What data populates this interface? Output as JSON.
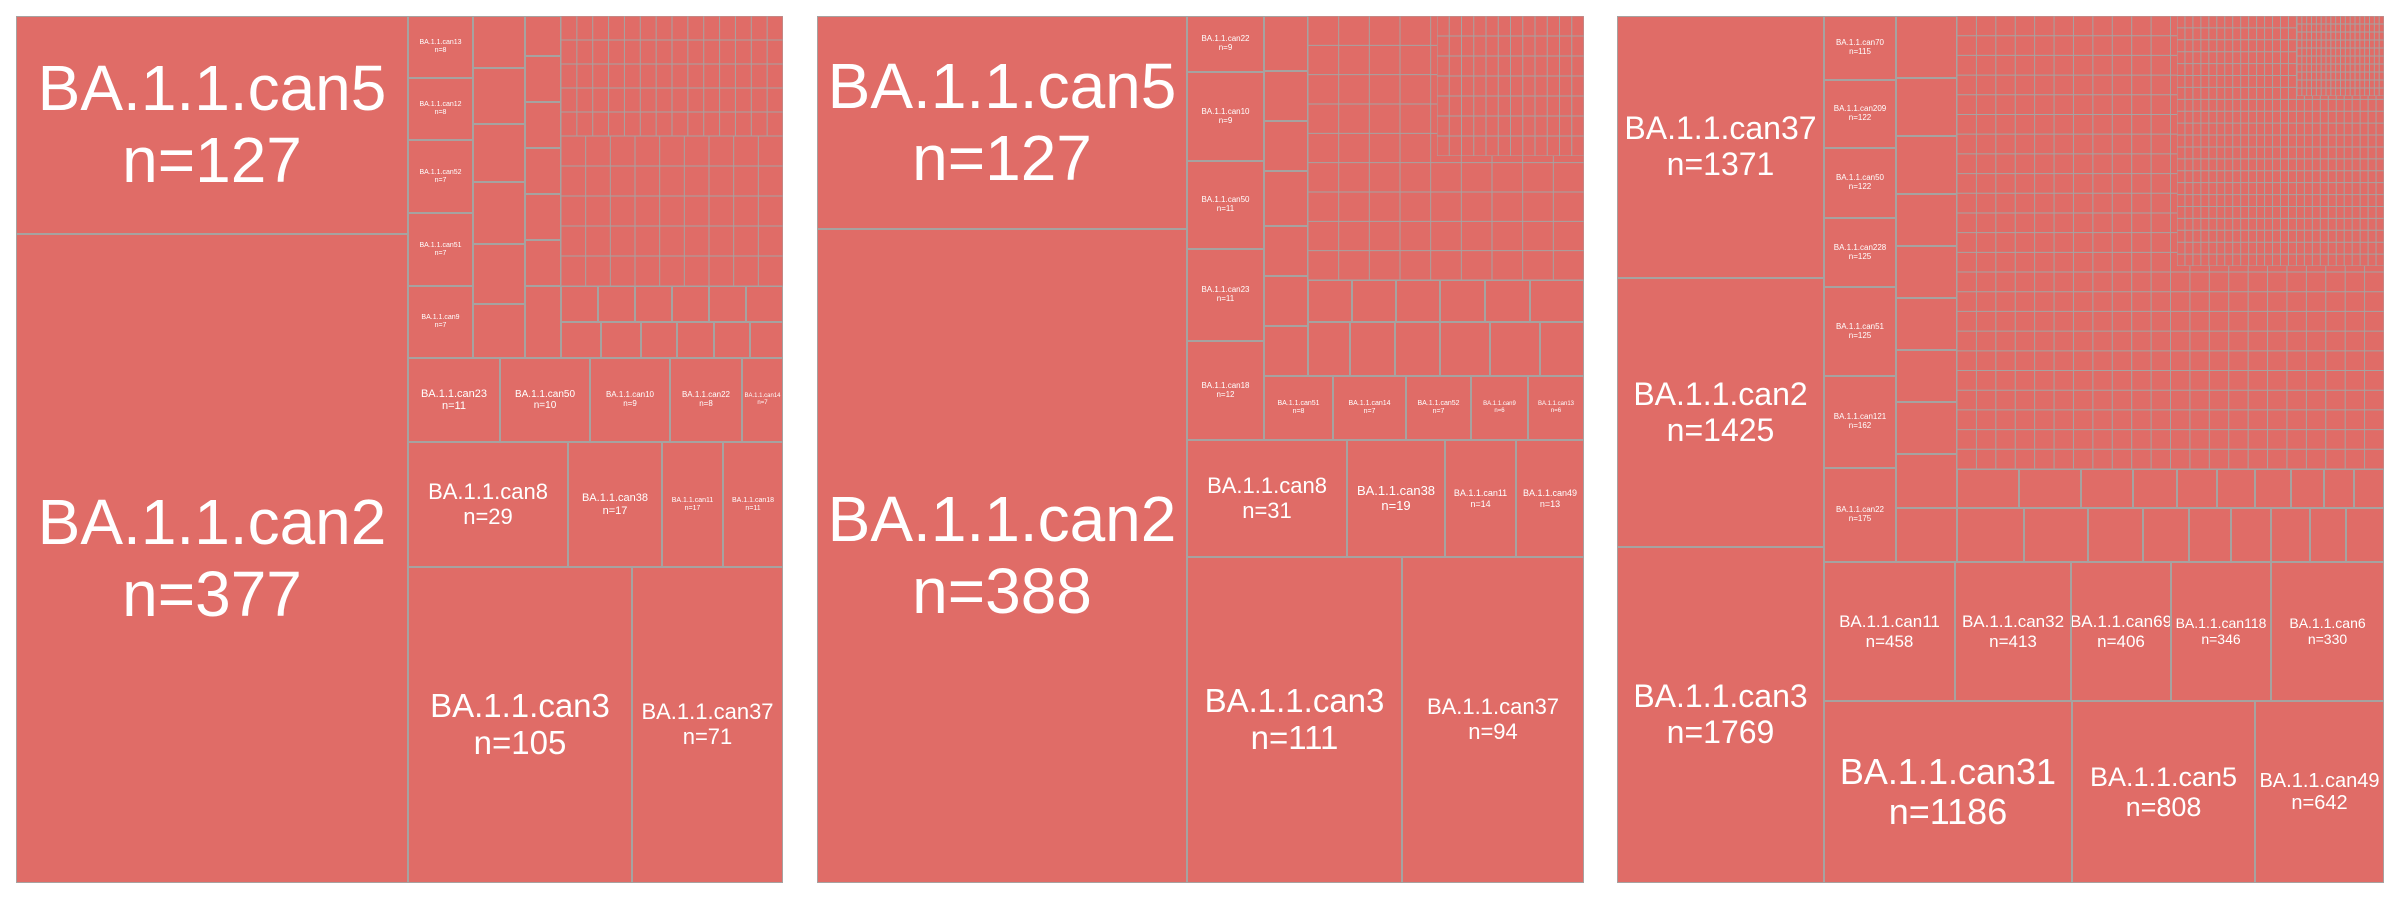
{
  "chart_data": [
    {
      "type": "treemap",
      "colors": {
        "tile": "#e06c67",
        "border": "#a7a2a0",
        "text": "#ffffff"
      },
      "labeled_tiles": [
        {
          "name": "BA.1.1.can2",
          "n": "n=377"
        },
        {
          "name": "BA.1.1.can5",
          "n": "n=127"
        },
        {
          "name": "BA.1.1.can3",
          "n": "n=105"
        },
        {
          "name": "BA.1.1.can37",
          "n": "n=71"
        },
        {
          "name": "BA.1.1.can8",
          "n": "n=29"
        },
        {
          "name": "BA.1.1.can38",
          "n": "n=17"
        },
        {
          "name": "BA.1.1.can11",
          "n": "n=17"
        },
        {
          "name": "BA.1.1.can18",
          "n": "n=11"
        },
        {
          "name": "BA.1.1.can23",
          "n": "n=11"
        },
        {
          "name": "BA.1.1.can50",
          "n": "n=10"
        },
        {
          "name": "BA.1.1.can10",
          "n": "n=9"
        },
        {
          "name": "BA.1.1.can22",
          "n": "n=8"
        },
        {
          "name": "BA.1.1.can14",
          "n": "n=7"
        },
        {
          "name": "BA.1.1.can13",
          "n": "n=8"
        },
        {
          "name": "BA.1.1.can12",
          "n": "n=8"
        },
        {
          "name": "BA.1.1.can52",
          "n": "n=7"
        },
        {
          "name": "BA.1.1.can51",
          "n": "n=7"
        },
        {
          "name": "BA.1.1.can9",
          "n": "n=7"
        }
      ]
    },
    {
      "type": "treemap",
      "colors": {
        "tile": "#e06c67",
        "border": "#a7a2a0",
        "text": "#ffffff"
      },
      "labeled_tiles": [
        {
          "name": "BA.1.1.can2",
          "n": "n=388"
        },
        {
          "name": "BA.1.1.can5",
          "n": "n=127"
        },
        {
          "name": "BA.1.1.can3",
          "n": "n=111"
        },
        {
          "name": "BA.1.1.can37",
          "n": "n=94"
        },
        {
          "name": "BA.1.1.can8",
          "n": "n=31"
        },
        {
          "name": "BA.1.1.can38",
          "n": "n=19"
        },
        {
          "name": "BA.1.1.can11",
          "n": "n=14"
        },
        {
          "name": "BA.1.1.can49",
          "n": "n=13"
        },
        {
          "name": "BA.1.1.can18",
          "n": "n=12"
        },
        {
          "name": "BA.1.1.can23",
          "n": "n=11"
        },
        {
          "name": "BA.1.1.can50",
          "n": "n=11"
        },
        {
          "name": "BA.1.1.can10",
          "n": "n=9"
        },
        {
          "name": "BA.1.1.can22",
          "n": "n=9"
        },
        {
          "name": "BA.1.1.can51",
          "n": "n=8"
        },
        {
          "name": "BA.1.1.can14",
          "n": "n=7"
        },
        {
          "name": "BA.1.1.can52",
          "n": "n=7"
        },
        {
          "name": "BA.1.1.can9",
          "n": "n=6"
        },
        {
          "name": "BA.1.1.can13",
          "n": "n=6"
        }
      ]
    },
    {
      "type": "treemap",
      "colors": {
        "tile": "#e06c67",
        "border": "#a7a2a0",
        "text": "#ffffff"
      },
      "labeled_tiles": [
        {
          "name": "BA.1.1.can3",
          "n": "n=1769"
        },
        {
          "name": "BA.1.1.can2",
          "n": "n=1425"
        },
        {
          "name": "BA.1.1.can37",
          "n": "n=1371"
        },
        {
          "name": "BA.1.1.can31",
          "n": "n=1186"
        },
        {
          "name": "BA.1.1.can5",
          "n": "n=808"
        },
        {
          "name": "BA.1.1.can49",
          "n": "n=642"
        },
        {
          "name": "BA.1.1.can11",
          "n": "n=458"
        },
        {
          "name": "BA.1.1.can32",
          "n": "n=413"
        },
        {
          "name": "BA.1.1.can69",
          "n": "n=406"
        },
        {
          "name": "BA.1.1.can118",
          "n": "n=346"
        },
        {
          "name": "BA.1.1.can6",
          "n": "n=330"
        },
        {
          "name": "BA.1.1.can70",
          "n": "n=115"
        },
        {
          "name": "BA.1.1.can209",
          "n": "n=122"
        },
        {
          "name": "BA.1.1.can50",
          "n": "n=122"
        },
        {
          "name": "BA.1.1.can228",
          "n": "n=125"
        },
        {
          "name": "BA.1.1.can51",
          "n": "n=125"
        },
        {
          "name": "BA.1.1.can121",
          "n": "n=162"
        },
        {
          "name": "BA.1.1.can22",
          "n": "n=175"
        }
      ]
    }
  ]
}
